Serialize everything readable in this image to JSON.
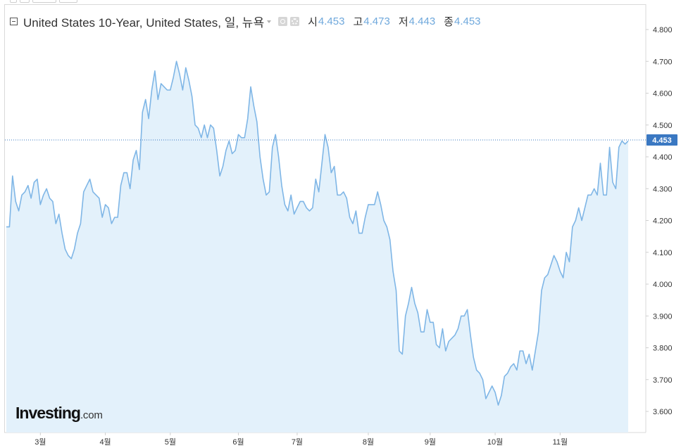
{
  "header": {
    "title": "United States 10-Year, United States, 일, 뉴욕",
    "ohlc": [
      {
        "label": "시",
        "value": "4.453"
      },
      {
        "label": "고",
        "value": "4.473"
      },
      {
        "label": "저",
        "value": "4.443"
      },
      {
        "label": "종",
        "value": "4.453"
      }
    ]
  },
  "logo": {
    "main": "Investing",
    "suffix": ".com"
  },
  "colors": {
    "line": "#7fb6e6",
    "fill": "#e3f1fb",
    "current_marker": "#3a78c2",
    "accent_values": "#6fa8dc"
  },
  "icons": [
    "collapse-icon",
    "eye-icon",
    "gear-icon"
  ],
  "chart_data": {
    "type": "area",
    "title": "",
    "xlabel": "",
    "ylabel": "",
    "ylim": [
      3.53,
      4.85
    ],
    "yticks": [
      "4.800",
      "4.700",
      "4.600",
      "4.500",
      "4.400",
      "4.300",
      "4.200",
      "4.100",
      "4.000",
      "3.900",
      "3.800",
      "3.700",
      "3.600"
    ],
    "x_ticks": [
      {
        "label": "3월",
        "index": 11
      },
      {
        "label": "4월",
        "index": 32
      },
      {
        "label": "5월",
        "index": 53
      },
      {
        "label": "6월",
        "index": 75
      },
      {
        "label": "7월",
        "index": 94
      },
      {
        "label": "8월",
        "index": 117
      },
      {
        "label": "9월",
        "index": 137
      },
      {
        "label": "10월",
        "index": 158
      },
      {
        "label": "11월",
        "index": 179
      }
    ],
    "current_value": "4.453",
    "series": [
      {
        "values": [
          4.18,
          4.18,
          4.34,
          4.26,
          4.23,
          4.28,
          4.29,
          4.31,
          4.27,
          4.32,
          4.33,
          4.25,
          4.28,
          4.3,
          4.27,
          4.26,
          4.19,
          4.22,
          4.16,
          4.11,
          4.09,
          4.08,
          4.11,
          4.16,
          4.19,
          4.29,
          4.31,
          4.33,
          4.29,
          4.28,
          4.27,
          4.21,
          4.25,
          4.24,
          4.19,
          4.21,
          4.21,
          4.31,
          4.35,
          4.35,
          4.3,
          4.39,
          4.42,
          4.36,
          4.54,
          4.58,
          4.52,
          4.61,
          4.67,
          4.58,
          4.63,
          4.62,
          4.61,
          4.61,
          4.65,
          4.7,
          4.66,
          4.61,
          4.68,
          4.64,
          4.59,
          4.5,
          4.49,
          4.46,
          4.5,
          4.46,
          4.5,
          4.49,
          4.42,
          4.34,
          4.37,
          4.42,
          4.45,
          4.41,
          4.42,
          4.47,
          4.46,
          4.46,
          4.52,
          4.62,
          4.56,
          4.51,
          4.4,
          4.33,
          4.28,
          4.29,
          4.43,
          4.47,
          4.4,
          4.31,
          4.25,
          4.23,
          4.28,
          4.22,
          4.24,
          4.26,
          4.26,
          4.24,
          4.23,
          4.24,
          4.33,
          4.29,
          4.38,
          4.47,
          4.43,
          4.35,
          4.37,
          4.28,
          4.28,
          4.29,
          4.27,
          4.21,
          4.19,
          4.23,
          4.16,
          4.16,
          4.21,
          4.25,
          4.25,
          4.25,
          4.29,
          4.25,
          4.2,
          4.18,
          4.14,
          4.04,
          3.98,
          3.79,
          3.78,
          3.9,
          3.94,
          3.99,
          3.94,
          3.91,
          3.85,
          3.85,
          3.92,
          3.88,
          3.88,
          3.81,
          3.8,
          3.86,
          3.79,
          3.82,
          3.83,
          3.84,
          3.86,
          3.9,
          3.9,
          3.92,
          3.84,
          3.77,
          3.73,
          3.72,
          3.7,
          3.64,
          3.66,
          3.68,
          3.66,
          3.62,
          3.65,
          3.71,
          3.72,
          3.74,
          3.75,
          3.73,
          3.79,
          3.79,
          3.75,
          3.78,
          3.73,
          3.79,
          3.85,
          3.98,
          4.02,
          4.03,
          4.06,
          4.09,
          4.07,
          4.04,
          4.02,
          4.1,
          4.07,
          4.18,
          4.2,
          4.24,
          4.2,
          4.24,
          4.28,
          4.28,
          4.3,
          4.28,
          4.38,
          4.28,
          4.28,
          4.43,
          4.32,
          4.3,
          4.43,
          4.45,
          4.44,
          4.45
        ]
      }
    ]
  }
}
